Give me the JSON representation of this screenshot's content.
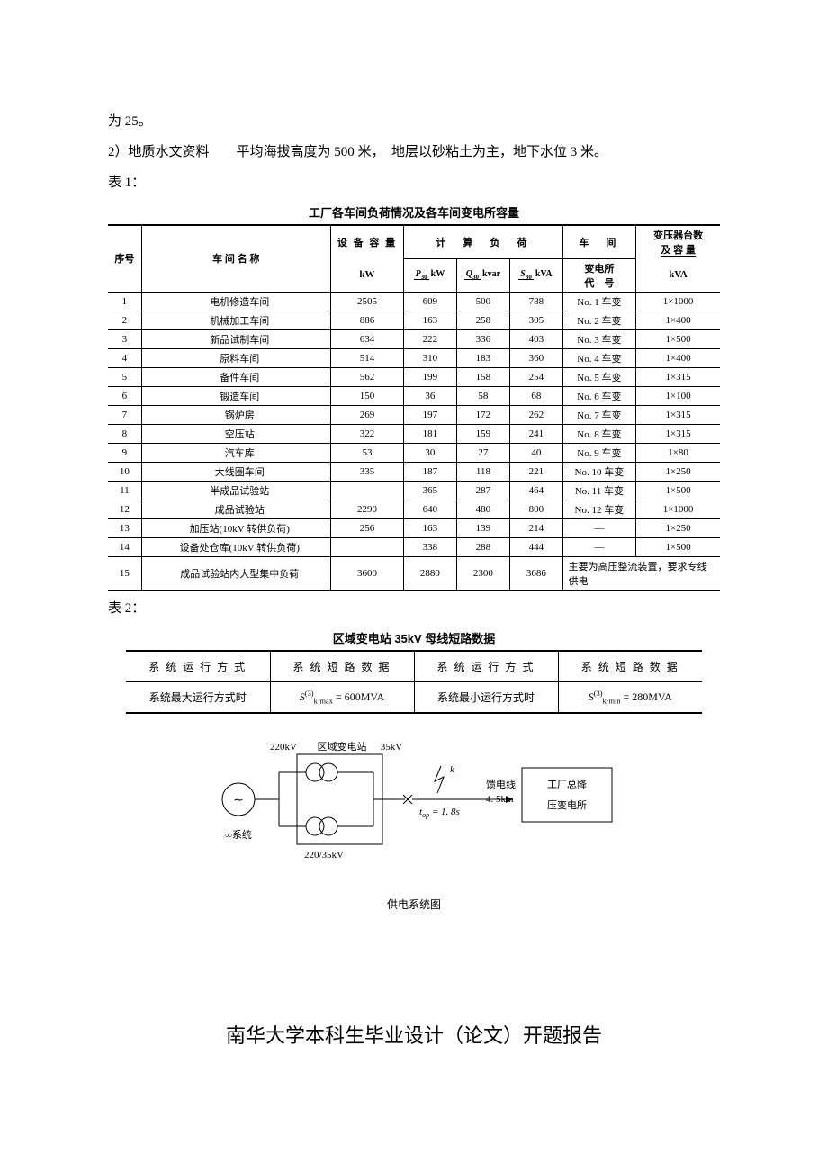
{
  "intro": {
    "line1": "为 25。",
    "line2": "2）地质水文资料　　平均海拔高度为 500 米，　地层以砂粘土为主，地下水位 3 米。",
    "line3": "表 1："
  },
  "table1": {
    "title": "工厂各车间负荷情况及各车间变电所容量",
    "head": {
      "seq": "序号",
      "name": "车 间 名 称",
      "equip": "设 备 容 量",
      "equip_unit": "kW",
      "calc": "计　算　负　荷",
      "p30_num": "P",
      "p30_sub": "30",
      "p30_den": "kW",
      "q30_num": "Q",
      "q30_sub": "30",
      "q30_den": "kvar",
      "s30_num": "S",
      "s30_sub": "30",
      "s30_den": "kVA",
      "workshop": "车　间",
      "workshop_sub1": "变电所",
      "workshop_sub2": "代　号",
      "trans": "变压器台数",
      "trans_sub": "及 容 量",
      "trans_unit": "kVA"
    },
    "rows": [
      {
        "n": "1",
        "name": "电机修造车间",
        "eq": "2505",
        "p": "609",
        "q": "500",
        "s": "788",
        "code": "No. 1 车变",
        "tr": "1×1000"
      },
      {
        "n": "2",
        "name": "机械加工车间",
        "eq": "886",
        "p": "163",
        "q": "258",
        "s": "305",
        "code": "No. 2 车变",
        "tr": "1×400"
      },
      {
        "n": "3",
        "name": "新品试制车间",
        "eq": "634",
        "p": "222",
        "q": "336",
        "s": "403",
        "code": "No. 3 车变",
        "tr": "1×500"
      },
      {
        "n": "4",
        "name": "原料车间",
        "eq": "514",
        "p": "310",
        "q": "183",
        "s": "360",
        "code": "No. 4 车变",
        "tr": "1×400"
      },
      {
        "n": "5",
        "name": "备件车间",
        "eq": "562",
        "p": "199",
        "q": "158",
        "s": "254",
        "code": "No. 5 车变",
        "tr": "1×315"
      },
      {
        "n": "6",
        "name": "锻造车间",
        "eq": "150",
        "p": "36",
        "q": "58",
        "s": "68",
        "code": "No. 6 车变",
        "tr": "1×100"
      },
      {
        "n": "7",
        "name": "锅炉房",
        "eq": "269",
        "p": "197",
        "q": "172",
        "s": "262",
        "code": "No. 7 车变",
        "tr": "1×315"
      },
      {
        "n": "8",
        "name": "空压站",
        "eq": "322",
        "p": "181",
        "q": "159",
        "s": "241",
        "code": "No. 8 车变",
        "tr": "1×315"
      },
      {
        "n": "9",
        "name": "汽车库",
        "eq": "53",
        "p": "30",
        "q": "27",
        "s": "40",
        "code": "No. 9 车变",
        "tr": "1×80"
      },
      {
        "n": "10",
        "name": "大线圈车间",
        "eq": "335",
        "p": "187",
        "q": "118",
        "s": "221",
        "code": "No. 10 车变",
        "tr": "1×250"
      },
      {
        "n": "11",
        "name": "半成品试验站",
        "eq": "",
        "p": "365",
        "q": "287",
        "s": "464",
        "code": "No. 11 车变",
        "tr": "1×500"
      },
      {
        "n": "12",
        "name": "成品试验站",
        "eq": "2290",
        "p": "640",
        "q": "480",
        "s": "800",
        "code": "No. 12 车变",
        "tr": "1×1000"
      },
      {
        "n": "13",
        "name": "加压站(10kV 转供负荷)",
        "eq": "256",
        "p": "163",
        "q": "139",
        "s": "214",
        "code": "—",
        "tr": "1×250"
      },
      {
        "n": "14",
        "name": "设备处仓库(10kV 转供负荷)",
        "eq": "",
        "p": "338",
        "q": "288",
        "s": "444",
        "code": "—",
        "tr": "1×500"
      }
    ],
    "row15": {
      "n": "15",
      "name": "成品试验站内大型集中负荷",
      "eq": "3600",
      "p": "2880",
      "q": "2300",
      "s": "3686",
      "note": "主要为高压整流装置，要求专线供电"
    }
  },
  "table2_label": "表 2：",
  "table2": {
    "title": "区域变电站 35kV 母线短路数据",
    "h1": "系 统 运 行 方 式",
    "h2": "系 统 短 路 数 据",
    "h3": "系 统 运 行 方 式",
    "h4": "系 统 短 路 数 据",
    "r1c1": "系统最大运行方式时",
    "r1c2_prefix": "S",
    "r1c2_sup": "(3)",
    "r1c2_sub": "k·max",
    "r1c2_eq": " = 600MVA",
    "r1c3": "系统最小运行方式时",
    "r1c4_prefix": "S",
    "r1c4_sup": "(3)",
    "r1c4_sub": "k·min",
    "r1c4_eq": " = 280MVA"
  },
  "diagram": {
    "v220": "220kV",
    "sub": "区域变电站",
    "v35": "35kV",
    "k": "k",
    "feeder": "馈电线",
    "dist": "4. 5km",
    "top": "t",
    "top_sub": "op",
    "top_eq": " = 1. 8s",
    "sys": "∞系统",
    "tilde": "∼",
    "ratio": "220/35kV",
    "box1": "工厂总降",
    "box2": "压变电所",
    "caption": "供电系统图"
  },
  "footer": "南华大学本科生毕业设计（论文）开题报告"
}
